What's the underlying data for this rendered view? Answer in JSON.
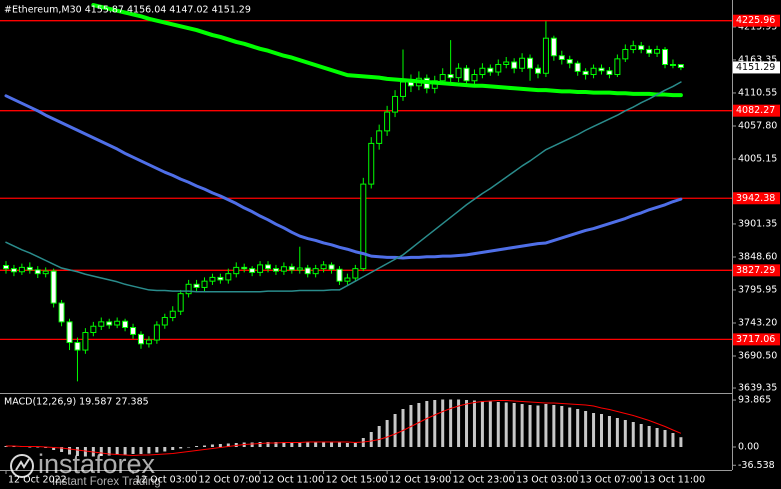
{
  "chart_data": [
    {
      "type": "candlestick",
      "title": "#Ethereum,M30  4155.87 4156.04 4147.02 4151.29",
      "categories": [
        "12 Oct 2022",
        null,
        null,
        null,
        null,
        null,
        null,
        null,
        null,
        null,
        null,
        null,
        null,
        null,
        null,
        null,
        "12 Oct 03:00",
        null,
        null,
        null,
        null,
        null,
        null,
        null,
        "12 Oct 07:00",
        null,
        null,
        null,
        null,
        null,
        null,
        null,
        "12 Oct 11:00",
        null,
        null,
        null,
        null,
        null,
        null,
        null,
        "12 Oct 15:00",
        null,
        null,
        null,
        null,
        null,
        null,
        null,
        "12 Oct 19:00",
        null,
        null,
        null,
        null,
        null,
        null,
        null,
        "12 Oct 23:00",
        null,
        null,
        null,
        null,
        null,
        null,
        null,
        "13 Oct 03:00",
        null,
        null,
        null,
        null,
        null,
        null,
        null,
        "13 Oct 07:00",
        null,
        null,
        null,
        null,
        null,
        null,
        null,
        "13 Oct 11:00",
        null,
        null,
        null,
        null,
        null
      ],
      "open": [
        3835,
        3830,
        3825,
        3832,
        3828,
        3822,
        3826,
        3775,
        3745,
        3712,
        3700,
        3728,
        3738,
        3745,
        3740,
        3746,
        3736,
        3725,
        3710,
        3716,
        3740,
        3752,
        3762,
        3790,
        3805,
        3800,
        3810,
        3816,
        3812,
        3822,
        3832,
        3830,
        3824,
        3836,
        3830,
        3826,
        3833,
        3828,
        3831,
        3822,
        3830,
        3836,
        3829,
        3810,
        3815,
        3830,
        3965,
        4030,
        4050,
        4080,
        4105,
        4128,
        4122,
        4134,
        4118,
        4130,
        4140,
        4135,
        4150,
        4130,
        4140,
        4150,
        4144,
        4156,
        4160,
        4150,
        4166,
        4150,
        4142,
        4198,
        4170,
        4164,
        4158,
        4145,
        4140,
        4150,
        4146,
        4140,
        4165,
        4180,
        4186,
        4180,
        4174,
        4180,
        4156,
        4155.87
      ],
      "high": [
        3842,
        3836,
        3838,
        3840,
        3834,
        3832,
        3830,
        3780,
        3750,
        3720,
        3735,
        3745,
        3752,
        3750,
        3752,
        3750,
        3742,
        3730,
        3722,
        3746,
        3758,
        3770,
        3796,
        3812,
        3812,
        3816,
        3822,
        3822,
        3830,
        3840,
        3838,
        3834,
        3842,
        3842,
        3836,
        3840,
        3838,
        3865,
        3836,
        3836,
        3842,
        3840,
        3834,
        3822,
        3836,
        3975,
        4040,
        4060,
        4090,
        4115,
        4180,
        4140,
        4145,
        4140,
        4138,
        4150,
        4195,
        4158,
        4155,
        4148,
        4158,
        4156,
        4164,
        4168,
        4166,
        4174,
        4172,
        4156,
        4225,
        4202,
        4178,
        4170,
        4162,
        4150,
        4156,
        4156,
        4152,
        4172,
        4188,
        4194,
        4192,
        4186,
        4186,
        4184,
        4164,
        4156.04
      ],
      "low": [
        3822,
        3818,
        3820,
        3822,
        3815,
        3816,
        3768,
        3738,
        3700,
        3650,
        3694,
        3722,
        3732,
        3734,
        3735,
        3730,
        3718,
        3702,
        3704,
        3710,
        3734,
        3746,
        3756,
        3784,
        3794,
        3794,
        3804,
        3806,
        3806,
        3816,
        3824,
        3818,
        3818,
        3824,
        3820,
        3820,
        3822,
        3822,
        3816,
        3816,
        3824,
        3822,
        3804,
        3804,
        3810,
        3826,
        3958,
        4020,
        4042,
        4072,
        4098,
        4112,
        4115,
        4110,
        4110,
        4124,
        4128,
        4128,
        4122,
        4124,
        4134,
        4138,
        4138,
        4150,
        4142,
        4144,
        4130,
        4134,
        4136,
        4162,
        4156,
        4150,
        4138,
        4132,
        4134,
        4140,
        4134,
        4136,
        4160,
        4174,
        4174,
        4168,
        4168,
        4150,
        4150,
        4147.02
      ],
      "close": [
        3830,
        3825,
        3832,
        3828,
        3822,
        3826,
        3775,
        3745,
        3712,
        3700,
        3728,
        3738,
        3745,
        3740,
        3746,
        3736,
        3725,
        3710,
        3716,
        3740,
        3752,
        3762,
        3790,
        3805,
        3800,
        3810,
        3816,
        3812,
        3822,
        3832,
        3830,
        3824,
        3836,
        3830,
        3826,
        3833,
        3828,
        3831,
        3822,
        3830,
        3836,
        3829,
        3810,
        3815,
        3830,
        3965,
        4030,
        4050,
        4080,
        4105,
        4128,
        4122,
        4134,
        4118,
        4130,
        4140,
        4135,
        4150,
        4130,
        4140,
        4150,
        4144,
        4156,
        4160,
        4150,
        4166,
        4150,
        4142,
        4198,
        4170,
        4164,
        4158,
        4145,
        4140,
        4150,
        4146,
        4140,
        4165,
        4180,
        4186,
        4180,
        4174,
        4180,
        4156,
        4155.87,
        4151.29
      ],
      "up_color": "#000000",
      "down_color": "#ffffff",
      "wick_color": "#00ff00",
      "series": [
        {
          "color": "#00ff00",
          "line_width": 4,
          "values": [
            null,
            null,
            null,
            null,
            null,
            null,
            null,
            null,
            null,
            null,
            null,
            4251,
            4248,
            4245,
            4242,
            4239,
            4236,
            4233,
            4229,
            4226,
            4223,
            4220,
            4217,
            4214,
            4211,
            4207,
            4203,
            4200,
            4196,
            4192,
            4189,
            4185,
            4181,
            4178,
            4174,
            4170,
            4167,
            4163,
            4159,
            4155,
            4151,
            4147,
            4143,
            4139,
            4138,
            4137,
            4136,
            4135,
            4133,
            4132,
            4131,
            4130,
            4129,
            4128,
            4127,
            4126,
            4125,
            4124,
            4123,
            4122,
            4122,
            4121,
            4120,
            4119,
            4118,
            4117,
            4116,
            4115,
            4115,
            4114,
            4113,
            4113,
            4112,
            4112,
            4111,
            4111,
            4111,
            4110,
            4110,
            4109,
            4109,
            4109,
            4108,
            4108,
            4107,
            4107
          ]
        },
        {
          "color": "#4f6fe8",
          "line_width": 3,
          "values": [
            4106,
            4100,
            4094,
            4088,
            4082,
            4075,
            4069,
            4063,
            4057,
            4051,
            4045,
            4039,
            4033,
            4027,
            4021,
            4014,
            4008,
            4002,
            3996,
            3990,
            3984,
            3979,
            3973,
            3968,
            3962,
            3957,
            3951,
            3946,
            3940,
            3934,
            3927,
            3921,
            3914,
            3908,
            3901,
            3895,
            3888,
            3882,
            3878,
            3875,
            3871,
            3868,
            3864,
            3861,
            3857,
            3854,
            3850,
            3849,
            3848,
            3848,
            3847,
            3848,
            3848,
            3849,
            3849,
            3850,
            3850,
            3851,
            3852,
            3854,
            3856,
            3858,
            3860,
            3862,
            3864,
            3866,
            3868,
            3870,
            3871,
            3875,
            3879,
            3883,
            3887,
            3891,
            3894,
            3898,
            3902,
            3906,
            3910,
            3915,
            3919,
            3924,
            3928,
            3932,
            3937,
            3941
          ]
        },
        {
          "color": "#2a8c8c",
          "line_width": 1.5,
          "values": [
            3872,
            3866,
            3860,
            3855,
            3849,
            3843,
            3837,
            3831,
            3828,
            3825,
            3821,
            3818,
            3815,
            3812,
            3809,
            3805,
            3802,
            3799,
            3796,
            3795,
            3795,
            3794,
            3794,
            3794,
            3793,
            3793,
            3793,
            3793,
            3793,
            3793,
            3793,
            3793,
            3793,
            3794,
            3794,
            3794,
            3794,
            3795,
            3795,
            3795,
            3795,
            3796,
            3796,
            3803,
            3810,
            3817,
            3824,
            3831,
            3838,
            3845,
            3852,
            3862,
            3872,
            3882,
            3892,
            3902,
            3912,
            3922,
            3932,
            3941,
            3950,
            3958,
            3967,
            3976,
            3985,
            3994,
            4002,
            4011,
            4020,
            4026,
            4032,
            4038,
            4044,
            4051,
            4057,
            4063,
            4069,
            4075,
            4082,
            4088,
            4095,
            4101,
            4108,
            4115,
            4121,
            4128
          ]
        }
      ],
      "levels": [
        4225.96,
        4082.27,
        3942.38,
        3827.29,
        3717.06
      ],
      "level_color": "#ff0000",
      "ylim": [
        3633,
        4259
      ],
      "yticks": [
        4215.95,
        4163.35,
        4110.55,
        {
          "value": 4057.8,
          "label": "4057.80"
        },
        4005.15,
        3901.35,
        {
          "value": 3848.6,
          "label": "3848.60"
        },
        3795.95,
        {
          "value": 3743.2,
          "label": "3743.20"
        },
        {
          "value": 3690.5,
          "label": "3690.50"
        },
        3639.35
      ]
    },
    {
      "type": "macd",
      "title": "MACD(12,26,9) 19.587 27.385",
      "series": [
        {
          "style": "histogram",
          "color": "#c8c8c8",
          "values": [
            2,
            1,
            1,
            0,
            -1,
            -2,
            -6,
            -10,
            -15,
            -18,
            -19,
            -19,
            -18,
            -17,
            -16,
            -15,
            -14,
            -14,
            -13,
            -11,
            -9,
            -6,
            -3,
            0,
            2,
            3,
            5,
            6,
            7,
            8,
            9,
            9,
            10,
            10,
            10,
            10,
            10,
            10,
            10,
            10,
            10,
            10,
            9,
            8,
            8,
            18,
            30,
            42,
            54,
            66,
            76,
            84,
            88,
            92,
            94,
            95,
            95,
            95,
            94,
            93,
            92,
            91,
            90,
            89,
            88,
            86,
            84,
            83,
            86,
            84,
            82,
            79,
            76,
            72,
            68,
            66,
            62,
            58,
            54,
            50,
            46,
            42,
            38,
            34,
            28,
            19.587
          ]
        },
        {
          "style": "line",
          "color": "#ff0000",
          "values": [
            2,
            2,
            1,
            1,
            1,
            0,
            -1,
            -2,
            -4,
            -6,
            -8,
            -10,
            -12,
            -14,
            -15,
            -16,
            -17,
            -16,
            -16,
            -15,
            -14,
            -13,
            -11,
            -9,
            -7,
            -5,
            -3,
            -1,
            1,
            3,
            5,
            6,
            7,
            8,
            8,
            9,
            9,
            9,
            10,
            10,
            10,
            10,
            10,
            10,
            9,
            10,
            12,
            15,
            20,
            26,
            33,
            41,
            49,
            57,
            64,
            71,
            77,
            82,
            86,
            89,
            91,
            92,
            93,
            93,
            92,
            91,
            90,
            89,
            88,
            88,
            87,
            86,
            85,
            84,
            82,
            78,
            75,
            71,
            67,
            63,
            58,
            53,
            47,
            41,
            34,
            27.385
          ]
        }
      ],
      "ylim": [
        -46,
        102
      ],
      "yticks": [
        93.865,
        {
          "value": 0,
          "label": "0.00"
        },
        -36.538
      ]
    }
  ],
  "logo": {
    "name": "instaforex",
    "tagline": "Instant Forex Trading"
  }
}
